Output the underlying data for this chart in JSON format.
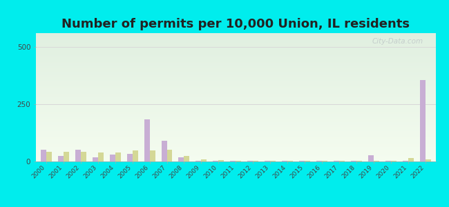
{
  "title": "Number of permits per 10,000 Union, IL residents",
  "years": [
    2000,
    2001,
    2002,
    2003,
    2004,
    2005,
    2006,
    2007,
    2008,
    2009,
    2010,
    2011,
    2012,
    2013,
    2014,
    2015,
    2016,
    2017,
    2018,
    2019,
    2020,
    2021,
    2022
  ],
  "union_village": [
    50,
    25,
    50,
    18,
    30,
    32,
    185,
    90,
    18,
    2,
    4,
    4,
    3,
    3,
    3,
    3,
    3,
    3,
    3,
    28,
    3,
    3,
    355
  ],
  "illinois_avg": [
    42,
    42,
    42,
    38,
    38,
    48,
    48,
    52,
    23,
    8,
    6,
    4,
    4,
    4,
    4,
    4,
    4,
    4,
    4,
    4,
    4,
    14,
    8
  ],
  "union_color": "#c8aed4",
  "illinois_color": "#d4d896",
  "ylim": [
    0,
    560
  ],
  "yticks": [
    0,
    250,
    500
  ],
  "background_outer": "#00eded",
  "grid_color": "#d8d8d8",
  "title_fontsize": 13,
  "watermark": "City-Data.com",
  "bar_width": 0.32
}
